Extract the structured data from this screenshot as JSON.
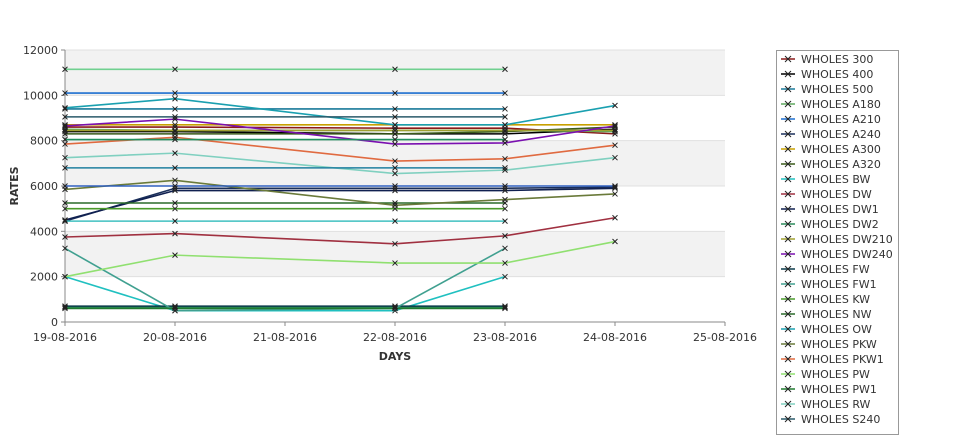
{
  "chart_data": {
    "type": "line",
    "xlabel": "DAYS",
    "ylabel": "RATES",
    "x_ticks": [
      "19-08-2016",
      "20-08-2016",
      "21-08-2016",
      "22-08-2016",
      "23-08-2016",
      "24-08-2016",
      "25-08-2016"
    ],
    "y_ticks": [
      "0",
      "2000",
      "4000",
      "6000",
      "8000",
      "10000",
      "12000"
    ],
    "ylim": [
      0,
      12000
    ],
    "grid": "horizontal bands",
    "legend_position": "right",
    "band_color": "#f2f2f2",
    "series": [
      {
        "name": "WHOLES 300",
        "color": "#8b1a1a",
        "x": [
          "19-08-2016",
          "20-08-2016",
          "22-08-2016",
          "23-08-2016",
          "24-08-2016"
        ],
        "values": [
          8600,
          8600,
          8550,
          8550,
          8300
        ]
      },
      {
        "name": "WHOLES 400",
        "color": "#000000",
        "x": [
          "19-08-2016",
          "20-08-2016",
          "22-08-2016",
          "23-08-2016",
          "24-08-2016"
        ],
        "values": [
          8400,
          8400,
          8300,
          8300,
          8500
        ]
      },
      {
        "name": "WHOLES 500",
        "color": "#1a7a9a",
        "x": [
          "19-08-2016",
          "20-08-2016",
          "22-08-2016",
          "23-08-2016"
        ],
        "values": [
          9400,
          9400,
          9400,
          9400
        ]
      },
      {
        "name": "WHOLES A180",
        "color": "#5fa85f",
        "x": [
          "19-08-2016",
          "20-08-2016",
          "22-08-2016",
          "23-08-2016",
          "24-08-2016"
        ],
        "values": [
          8500,
          8450,
          8450,
          8450,
          8400
        ]
      },
      {
        "name": "WHOLES A210",
        "color": "#1e6fd0",
        "x": [
          "19-08-2016",
          "20-08-2016",
          "22-08-2016",
          "23-08-2016"
        ],
        "values": [
          10100,
          10100,
          10100,
          10100
        ]
      },
      {
        "name": "WHOLES A240",
        "color": "#1a2f5a",
        "x": [
          "19-08-2016",
          "20-08-2016",
          "22-08-2016",
          "23-08-2016",
          "24-08-2016"
        ],
        "values": [
          4450,
          5900,
          5900,
          5900,
          5950
        ]
      },
      {
        "name": "WHOLES A300",
        "color": "#c8a000",
        "x": [
          "19-08-2016",
          "20-08-2016",
          "22-08-2016",
          "23-08-2016",
          "24-08-2016"
        ],
        "values": [
          8700,
          8700,
          8700,
          8700,
          8700
        ]
      },
      {
        "name": "WHOLES A320",
        "color": "#3a5a1a",
        "x": [
          "19-08-2016",
          "20-08-2016",
          "22-08-2016",
          "23-08-2016",
          "24-08-2016"
        ],
        "values": [
          8300,
          8300,
          8300,
          8400,
          8600
        ]
      },
      {
        "name": "WHOLES BW",
        "color": "#20c0c0",
        "x": [
          "19-08-2016",
          "20-08-2016",
          "22-08-2016",
          "23-08-2016",
          "24-08-2016"
        ],
        "values": [
          2000,
          500,
          500,
          2000,
          null
        ]
      },
      {
        "name": "WHOLES DW",
        "color": "#a03040",
        "x": [
          "19-08-2016",
          "20-08-2016",
          "22-08-2016",
          "23-08-2016",
          "24-08-2016"
        ],
        "values": [
          3750,
          3900,
          3450,
          3800,
          4600
        ]
      },
      {
        "name": "WHOLES DW1",
        "color": "#102050",
        "x": [
          "19-08-2016",
          "20-08-2016",
          "22-08-2016",
          "23-08-2016",
          "24-08-2016"
        ],
        "values": [
          4500,
          5800,
          5800,
          5800,
          5900
        ]
      },
      {
        "name": "WHOLES DW2",
        "color": "#2a8a5a",
        "x": [
          "19-08-2016",
          "20-08-2016",
          "22-08-2016",
          "23-08-2016"
        ],
        "values": [
          650,
          650,
          650,
          650
        ]
      },
      {
        "name": "WHOLES DW210",
        "color": "#a0a030",
        "x": [
          "19-08-2016",
          "20-08-2016",
          "22-08-2016",
          "23-08-2016",
          "24-08-2016"
        ],
        "values": [
          8450,
          8450,
          8450,
          8450,
          8450
        ]
      },
      {
        "name": "WHOLES DW240",
        "color": "#7a10b0",
        "x": [
          "19-08-2016",
          "20-08-2016",
          "22-08-2016",
          "23-08-2016",
          "24-08-2016"
        ],
        "values": [
          8650,
          8950,
          7850,
          7900,
          8650
        ]
      },
      {
        "name": "WHOLES FW",
        "color": "#0a3a4a",
        "x": [
          "19-08-2016",
          "20-08-2016",
          "22-08-2016",
          "23-08-2016"
        ],
        "values": [
          700,
          700,
          700,
          700
        ]
      },
      {
        "name": "WHOLES FW1",
        "color": "#40a090",
        "x": [
          "19-08-2016",
          "20-08-2016",
          "22-08-2016",
          "23-08-2016"
        ],
        "values": [
          3250,
          500,
          600,
          3250
        ]
      },
      {
        "name": "WHOLES KW",
        "color": "#4a9a2a",
        "x": [
          "19-08-2016",
          "20-08-2016",
          "22-08-2016",
          "23-08-2016"
        ],
        "values": [
          5000,
          5000,
          5000,
          5000
        ]
      },
      {
        "name": "WHOLES NW",
        "color": "#2a6a2a",
        "x": [
          "19-08-2016",
          "20-08-2016",
          "22-08-2016",
          "23-08-2016"
        ],
        "values": [
          5250,
          5250,
          5250,
          5250
        ]
      },
      {
        "name": "WHOLES OW",
        "color": "#1aa0b0",
        "x": [
          "19-08-2016",
          "20-08-2016",
          "22-08-2016",
          "23-08-2016",
          "24-08-2016"
        ],
        "values": [
          9450,
          9850,
          8700,
          8700,
          9550
        ]
      },
      {
        "name": "WHOLES PKW",
        "color": "#6a7a3a",
        "x": [
          "19-08-2016",
          "20-08-2016",
          "22-08-2016",
          "23-08-2016",
          "24-08-2016"
        ],
        "values": [
          5850,
          6250,
          5150,
          5400,
          5650
        ]
      },
      {
        "name": "WHOLES PKW1",
        "color": "#e06a40",
        "x": [
          "19-08-2016",
          "20-08-2016",
          "22-08-2016",
          "23-08-2016",
          "24-08-2016"
        ],
        "values": [
          7850,
          8150,
          7100,
          7200,
          7800
        ]
      },
      {
        "name": "WHOLES PW",
        "color": "#90e070",
        "x": [
          "19-08-2016",
          "20-08-2016",
          "22-08-2016",
          "23-08-2016",
          "24-08-2016"
        ],
        "values": [
          2000,
          2950,
          2600,
          2600,
          3550
        ]
      },
      {
        "name": "WHOLES PW1",
        "color": "#207a30",
        "x": [
          "19-08-2016",
          "20-08-2016",
          "22-08-2016",
          "23-08-2016"
        ],
        "values": [
          600,
          600,
          600,
          600
        ]
      },
      {
        "name": "WHOLES RW",
        "color": "#80d0c0",
        "x": [
          "19-08-2016",
          "20-08-2016",
          "22-08-2016",
          "23-08-2016",
          "24-08-2016"
        ],
        "values": [
          7250,
          7450,
          6550,
          6700,
          7250
        ]
      },
      {
        "name": "WHOLES S240",
        "color": "#2a5a6a",
        "x": [
          "19-08-2016",
          "20-08-2016",
          "22-08-2016",
          "23-08-2016"
        ],
        "values": [
          9050,
          9050,
          9050,
          9050
        ]
      },
      {
        "name": "",
        "color": "#70d090",
        "x": [
          "19-08-2016",
          "20-08-2016",
          "22-08-2016",
          "23-08-2016"
        ],
        "values": [
          11150,
          11150,
          11150,
          11150
        ]
      },
      {
        "name": "",
        "color": "#40c0c0",
        "x": [
          "19-08-2016",
          "20-08-2016",
          "22-08-2016",
          "23-08-2016"
        ],
        "values": [
          4450,
          4450,
          4450,
          4450
        ]
      },
      {
        "name": "",
        "color": "#2080a0",
        "x": [
          "19-08-2016",
          "20-08-2016",
          "22-08-2016",
          "23-08-2016"
        ],
        "values": [
          6800,
          6800,
          6800,
          6800
        ]
      },
      {
        "name": "",
        "color": "#3060c0",
        "x": [
          "19-08-2016",
          "20-08-2016",
          "22-08-2016",
          "23-08-2016",
          "24-08-2016"
        ],
        "values": [
          6000,
          6000,
          6000,
          6000,
          6000
        ]
      },
      {
        "name": "",
        "color": "#209060",
        "x": [
          "19-08-2016",
          "20-08-2016",
          "22-08-2016",
          "23-08-2016"
        ],
        "values": [
          8050,
          8050,
          8050,
          8050
        ]
      }
    ]
  }
}
